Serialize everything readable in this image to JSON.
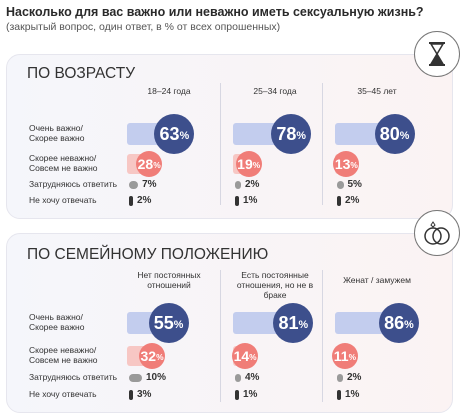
{
  "header": {
    "title": "Насколько для вас важно или неважно иметь сексуальную жизнь?",
    "subtitle": "(закрытый вопрос, один ответ, в % от всех опрошенных)"
  },
  "row_labels": {
    "important": "Очень важно/ Скореe важно",
    "important_l1": "Очень важно/",
    "important_l2": "Скорее важно",
    "not_important_l1": "Скорее неважно/",
    "not_important_l2": "Совсем не важно",
    "hard_to_say": "Затрудняюсь ответить",
    "no_answer": "Не хочу отвечать"
  },
  "colors": {
    "important_circle": "#3d4f8c",
    "important_bar": "#c3cdee",
    "not_important_circle": "#f07d78",
    "not_important_bar": "#f7c7c4",
    "hard_to_say": "#9a9a9a",
    "no_answer": "#333333"
  },
  "icons": {
    "age_panel": "hourglass-icon",
    "family_panel": "wedding-rings-icon"
  },
  "chart_data": [
    {
      "type": "bar",
      "title": "ПО ВОЗРАСТУ",
      "categories": [
        "18–24 года",
        "25–34 года",
        "35–45 лет"
      ],
      "series": [
        {
          "name": "Очень важно/ Скорее важно",
          "values": [
            63,
            78,
            80
          ]
        },
        {
          "name": "Скорее неважно/ Совсем не важно",
          "values": [
            28,
            19,
            13
          ]
        },
        {
          "name": "Затрудняюсь ответить",
          "values": [
            7,
            2,
            5
          ]
        },
        {
          "name": "Не хочу отвечать",
          "values": [
            2,
            1,
            2
          ]
        }
      ],
      "unit": "%"
    },
    {
      "type": "bar",
      "title": "ПО СЕМЕЙНОМУ ПОЛОЖЕНИЮ",
      "categories": [
        "Нет постоянных отношений",
        "Есть постоянные отношения, но не в браке",
        "Женат / замужем"
      ],
      "categories_l1": [
        "Нет постоянных",
        "Есть постоянные",
        "Женат / замужем"
      ],
      "categories_l2": [
        "отношений",
        "отношения, но не в браке",
        ""
      ],
      "series": [
        {
          "name": "Очень важно/ Скорее важно",
          "values": [
            55,
            81,
            86
          ]
        },
        {
          "name": "Скорее неважно/ Совсем не важно",
          "values": [
            32,
            14,
            11
          ]
        },
        {
          "name": "Затрудняюсь ответить",
          "values": [
            10,
            4,
            2
          ]
        },
        {
          "name": "Не хочу отвечать",
          "values": [
            3,
            1,
            1
          ]
        }
      ],
      "unit": "%"
    }
  ]
}
